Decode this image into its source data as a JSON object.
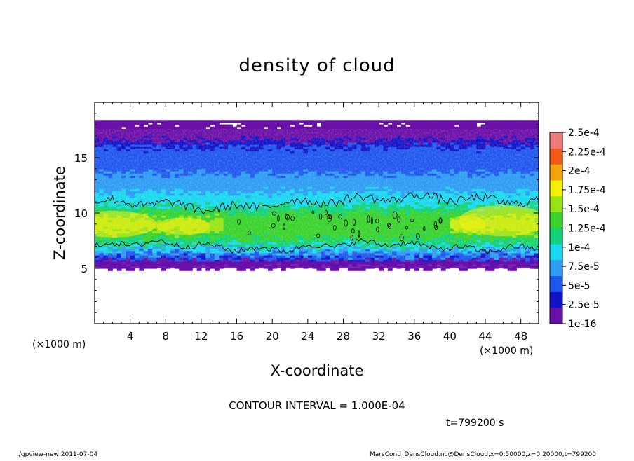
{
  "chart_data": {
    "type": "heatmap",
    "title": "density of cloud",
    "xlabel": "X-coordinate",
    "ylabel": "Z-coordinate",
    "x_unit": "(×1000 m)",
    "y_unit": "(×1000 m)",
    "xlim": [
      0,
      50
    ],
    "ylim": [
      0,
      20
    ],
    "x_ticks": [
      4,
      8,
      12,
      16,
      20,
      24,
      28,
      32,
      36,
      40,
      44,
      48
    ],
    "y_ticks": [
      5,
      10,
      15
    ],
    "colorbar": {
      "labels": [
        "1e-16",
        "2.5e-5",
        "5e-5",
        "7.5e-5",
        "1e-4",
        "1.25e-4",
        "1.5e-4",
        "1.75e-4",
        "2e-4",
        "2.25e-4",
        "2.5e-4"
      ],
      "colors": [
        "#6a0fa8",
        "#1212c8",
        "#1f56ee",
        "#2c9cf4",
        "#17d8ee",
        "#10d27a",
        "#38d22c",
        "#9ae414",
        "#f4f008",
        "#f6a40c",
        "#f25a16",
        "#f07a7a"
      ]
    },
    "cloud_layer": {
      "z_bottom": 5.0,
      "z_top": 18.0,
      "z_max_density": 9.0,
      "max_density_approx": 0.000175,
      "contour_level": 0.0001
    },
    "contour_interval_label": "CONTOUR INTERVAL = 1.000E-04",
    "time_label": "t=799200 s"
  },
  "footer": {
    "left": "./gpview-new   2011-07-04",
    "right": "MarsCond_DensCloud.nc@DensCloud,x=0:50000,z=0:20000,t=799200"
  }
}
